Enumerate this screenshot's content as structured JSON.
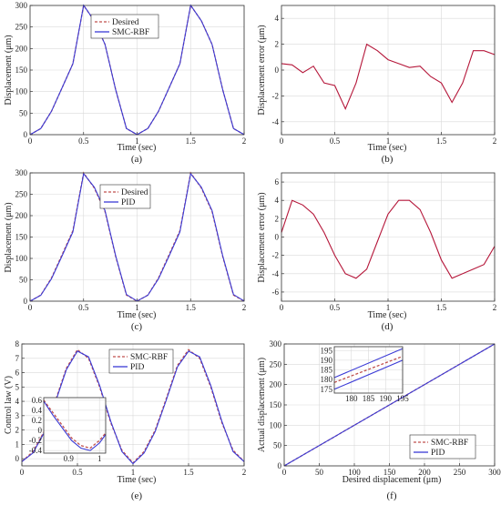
{
  "chart_data": [
    {
      "id": "a",
      "type": "line",
      "caption": "(a)",
      "xlabel": "Time (sec)",
      "ylabel": "Displacement (μm)",
      "xlim": [
        0,
        2
      ],
      "ylim": [
        0,
        300
      ],
      "xticks": [
        0,
        0.5,
        1,
        1.5,
        2
      ],
      "xticklabels": [
        "0",
        "0.5",
        "1",
        "1.5",
        "2"
      ],
      "yticks": [
        0,
        50,
        100,
        150,
        200,
        250,
        300
      ],
      "yticklabels": [
        "0",
        "50",
        "100",
        "150",
        "200",
        "250",
        "300"
      ],
      "grid": true,
      "legend": "top-center",
      "series": [
        {
          "name": "Desired",
          "color": "#c0504d",
          "style": "dashed",
          "x": [
            0,
            0.1,
            0.2,
            0.3,
            0.4,
            0.5,
            0.6,
            0.7,
            0.8,
            0.9,
            1.0,
            1.1,
            1.2,
            1.3,
            1.4,
            1.5,
            1.6,
            1.7,
            1.8,
            1.9,
            2.0
          ],
          "y": [
            0,
            14.3,
            54.3,
            109.5,
            164.7,
            300,
            264.7,
            209.5,
            104.3,
            14.3,
            0,
            14.3,
            54.3,
            109.5,
            164.7,
            300,
            264.7,
            209.5,
            104.3,
            14.3,
            0
          ]
        },
        {
          "name": "SMC-RBF",
          "color": "#3a3ad6",
          "style": "solid",
          "x": [
            0,
            0.1,
            0.2,
            0.3,
            0.4,
            0.5,
            0.6,
            0.7,
            0.8,
            0.9,
            1.0,
            1.1,
            1.2,
            1.3,
            1.4,
            1.5,
            1.6,
            1.7,
            1.8,
            1.9,
            2.0
          ],
          "y": [
            0,
            14.4,
            54.2,
            109.6,
            164.6,
            300.5,
            264.6,
            209.6,
            104.2,
            14.4,
            0.2,
            14.4,
            54.2,
            109.6,
            164.6,
            300.5,
            264.6,
            209.6,
            104.2,
            14.4,
            0.2
          ]
        }
      ]
    },
    {
      "id": "b",
      "type": "line",
      "caption": "(b)",
      "xlabel": "Time (sec)",
      "ylabel": "Displacement error (μm)",
      "xlim": [
        0,
        2
      ],
      "ylim": [
        -5,
        5
      ],
      "xticks": [
        0,
        0.5,
        1,
        1.5,
        2
      ],
      "xticklabels": [
        "0",
        "0.5",
        "1",
        "1.5",
        "2"
      ],
      "yticks": [
        -4,
        -2,
        0,
        2,
        4
      ],
      "yticklabels": [
        "-4",
        "-2",
        "0",
        "2",
        "4"
      ],
      "grid": true,
      "series": [
        {
          "color": "#b5173a",
          "style": "solid",
          "x": [
            0,
            0.1,
            0.2,
            0.3,
            0.4,
            0.5,
            0.6,
            0.7,
            0.8,
            0.9,
            1.0,
            1.1,
            1.2,
            1.3,
            1.4,
            1.5,
            1.6,
            1.7,
            1.8,
            1.9,
            2.0
          ],
          "y": [
            0.5,
            0.4,
            -0.2,
            0.3,
            -1.0,
            -1.2,
            -3.0,
            -1.0,
            2.0,
            1.5,
            0.8,
            0.5,
            0.2,
            0.3,
            -0.5,
            -1.0,
            -2.5,
            -1.0,
            1.5,
            1.5,
            1.2
          ]
        }
      ]
    },
    {
      "id": "c",
      "type": "line",
      "caption": "(c)",
      "xlabel": "Time (sec)",
      "ylabel": "Displacement (μm)",
      "xlim": [
        0,
        2
      ],
      "ylim": [
        0,
        300
      ],
      "xticks": [
        0,
        0.5,
        1,
        1.5,
        2
      ],
      "xticklabels": [
        "0",
        "0.5",
        "1",
        "1.5",
        "2"
      ],
      "yticks": [
        0,
        50,
        100,
        150,
        200,
        250,
        300
      ],
      "yticklabels": [
        "0",
        "50",
        "100",
        "150",
        "200",
        "250",
        "300"
      ],
      "grid": true,
      "legend": "top-center",
      "series": [
        {
          "name": "Desired",
          "color": "#c0504d",
          "style": "dashed",
          "x": [
            0,
            0.1,
            0.2,
            0.3,
            0.4,
            0.5,
            0.6,
            0.7,
            0.8,
            0.9,
            1.0,
            1.1,
            1.2,
            1.3,
            1.4,
            1.5,
            1.6,
            1.7,
            1.8,
            1.9,
            2.0
          ],
          "y": [
            0,
            14.3,
            54.3,
            109.5,
            164.7,
            300,
            264.7,
            209.5,
            104.3,
            14.3,
            0,
            14.3,
            54.3,
            109.5,
            164.7,
            300,
            264.7,
            209.5,
            104.3,
            14.3,
            0
          ]
        },
        {
          "name": "PID",
          "color": "#3a3ad6",
          "style": "solid",
          "x": [
            0,
            0.1,
            0.2,
            0.3,
            0.4,
            0.5,
            0.6,
            0.7,
            0.8,
            0.9,
            1.0,
            1.1,
            1.2,
            1.3,
            1.4,
            1.5,
            1.6,
            1.7,
            1.8,
            1.9,
            2.0
          ],
          "y": [
            0,
            13.8,
            52.5,
            106.5,
            162.0,
            298.0,
            266.5,
            212.0,
            106.0,
            15.5,
            0.5,
            13.8,
            52.5,
            106.5,
            162.0,
            298.0,
            266.5,
            212.0,
            106.0,
            15.5,
            0.5
          ]
        }
      ]
    },
    {
      "id": "d",
      "type": "line",
      "caption": "(d)",
      "xlabel": "Time (sec)",
      "ylabel": "Displacement error (μm)",
      "xlim": [
        0,
        2
      ],
      "ylim": [
        -7,
        7
      ],
      "xticks": [
        0,
        0.5,
        1,
        1.5,
        2
      ],
      "xticklabels": [
        "0",
        "0.5",
        "1",
        "1.5",
        "2"
      ],
      "yticks": [
        -6,
        -4,
        -2,
        0,
        2,
        4,
        6
      ],
      "yticklabels": [
        "-6",
        "-4",
        "-2",
        "0",
        "2",
        "4",
        "6"
      ],
      "grid": true,
      "series": [
        {
          "color": "#b5173a",
          "style": "solid",
          "x": [
            0,
            0.1,
            0.2,
            0.3,
            0.4,
            0.5,
            0.6,
            0.7,
            0.8,
            0.9,
            1.0,
            1.1,
            1.2,
            1.3,
            1.4,
            1.5,
            1.6,
            1.7,
            1.8,
            1.9,
            2.0
          ],
          "y": [
            0.5,
            4.0,
            3.5,
            2.5,
            0.5,
            -2.0,
            -4.0,
            -4.5,
            -3.5,
            -0.5,
            2.5,
            4.0,
            4.0,
            3.0,
            0.5,
            -2.5,
            -4.5,
            -4.0,
            -3.5,
            -3.0,
            -1.0
          ]
        }
      ]
    },
    {
      "id": "e",
      "type": "line",
      "caption": "(e)",
      "xlabel": "Time (sec)",
      "ylabel": "Control law (V)",
      "xlim": [
        0,
        2
      ],
      "ylim": [
        -0.5,
        8
      ],
      "xticks": [
        0,
        0.5,
        1,
        1.5,
        2
      ],
      "xticklabels": [
        "0",
        "0.5",
        "1",
        "1.5",
        "2"
      ],
      "yticks": [
        0,
        1,
        2,
        3,
        4,
        5,
        6,
        7,
        8
      ],
      "yticklabels": [
        "0",
        "1",
        "2",
        "3",
        "4",
        "5",
        "6",
        "7",
        "8"
      ],
      "grid": true,
      "legend": "top-center",
      "series": [
        {
          "name": "SMC-RBF",
          "color": "#c0504d",
          "style": "dashed",
          "x": [
            0,
            0.1,
            0.2,
            0.3,
            0.4,
            0.5,
            0.6,
            0.7,
            0.8,
            0.9,
            1.0,
            1.1,
            1.2,
            1.3,
            1.4,
            1.5,
            1.6,
            1.7,
            1.8,
            1.9,
            2.0
          ],
          "y": [
            -0.2,
            0.5,
            1.9,
            4.0,
            6.3,
            7.6,
            7.0,
            5.0,
            2.5,
            0.6,
            -0.3,
            0.5,
            2.0,
            4.2,
            6.5,
            7.6,
            7.0,
            5.0,
            2.5,
            0.6,
            -0.2
          ]
        },
        {
          "name": "PID",
          "color": "#3a3ad6",
          "style": "solid",
          "x": [
            0,
            0.1,
            0.2,
            0.3,
            0.4,
            0.5,
            0.6,
            0.7,
            0.8,
            0.9,
            1.0,
            1.1,
            1.2,
            1.3,
            1.4,
            1.5,
            1.6,
            1.7,
            1.8,
            1.9,
            2.0
          ],
          "y": [
            -0.2,
            0.4,
            1.8,
            3.9,
            6.2,
            7.5,
            7.1,
            5.1,
            2.6,
            0.5,
            -0.35,
            0.4,
            1.9,
            4.1,
            6.4,
            7.5,
            7.1,
            5.1,
            2.6,
            0.5,
            -0.2
          ]
        }
      ],
      "inset": {
        "xlim": [
          0.82,
          1.02
        ],
        "ylim": [
          -0.45,
          0.65
        ],
        "xticks": [
          0.9,
          1
        ],
        "xticklabels": [
          "0.9",
          "1"
        ],
        "yticks": [
          -0.4,
          -0.2,
          0,
          0.2,
          0.4,
          0.6
        ],
        "yticklabels": [
          "-0.4",
          "-0.2",
          "0",
          "0.2",
          "0.4",
          "0.6"
        ],
        "series": [
          {
            "color": "#c0504d",
            "style": "dashed",
            "x": [
              0.82,
              0.85,
              0.88,
              0.91,
              0.94,
              0.97,
              1.0,
              1.02
            ],
            "y": [
              0.6,
              0.35,
              0.1,
              -0.15,
              -0.3,
              -0.35,
              -0.2,
              -0.05
            ]
          },
          {
            "color": "#3a3ad6",
            "style": "solid",
            "x": [
              0.82,
              0.85,
              0.88,
              0.91,
              0.94,
              0.97,
              1.0,
              1.02
            ],
            "y": [
              0.58,
              0.3,
              0.05,
              -0.2,
              -0.35,
              -0.4,
              -0.25,
              -0.08
            ]
          }
        ]
      }
    },
    {
      "id": "f",
      "type": "line",
      "caption": "(f)",
      "xlabel": "Desired displacement (μm)",
      "ylabel": "Actual displacement (μm)",
      "xlim": [
        0,
        300
      ],
      "ylim": [
        0,
        300
      ],
      "xticks": [
        0,
        50,
        100,
        150,
        200,
        250,
        300
      ],
      "xticklabels": [
        "0",
        "50",
        "100",
        "150",
        "200",
        "250",
        "300"
      ],
      "yticks": [
        0,
        50,
        100,
        150,
        200,
        250,
        300
      ],
      "yticklabels": [
        "0",
        "50",
        "100",
        "150",
        "200",
        "250",
        "300"
      ],
      "grid": true,
      "legend": "bottom-right",
      "series": [
        {
          "name": "SMC-RBF",
          "color": "#c0504d",
          "style": "dashed",
          "x": [
            0,
            300
          ],
          "y": [
            0,
            300
          ]
        },
        {
          "name": "PID",
          "color": "#3a3ad6",
          "style": "solid",
          "x": [
            0,
            300
          ],
          "y": [
            0,
            300
          ]
        }
      ],
      "inset": {
        "xlim": [
          175,
          195
        ],
        "ylim": [
          173,
          197
        ],
        "xticks": [
          180,
          185,
          190,
          195
        ],
        "xticklabels": [
          "180",
          "185",
          "190",
          "195"
        ],
        "yticks": [
          175,
          180,
          185,
          190,
          195
        ],
        "yticklabels": [
          "175",
          "180",
          "185",
          "190",
          "195"
        ],
        "series": [
          {
            "color": "#c0504d",
            "style": "dashed",
            "x": [
              175,
              195
            ],
            "y": [
              178.5,
              192
            ]
          },
          {
            "color": "#3a3ad6",
            "style": "solid",
            "x": [
              175,
              195
            ],
            "y": [
              181,
              196
            ]
          },
          {
            "color": "#3a3ad6",
            "style": "solid",
            "x": [
              175,
              195
            ],
            "y": [
              175,
              190
            ]
          }
        ]
      }
    }
  ]
}
